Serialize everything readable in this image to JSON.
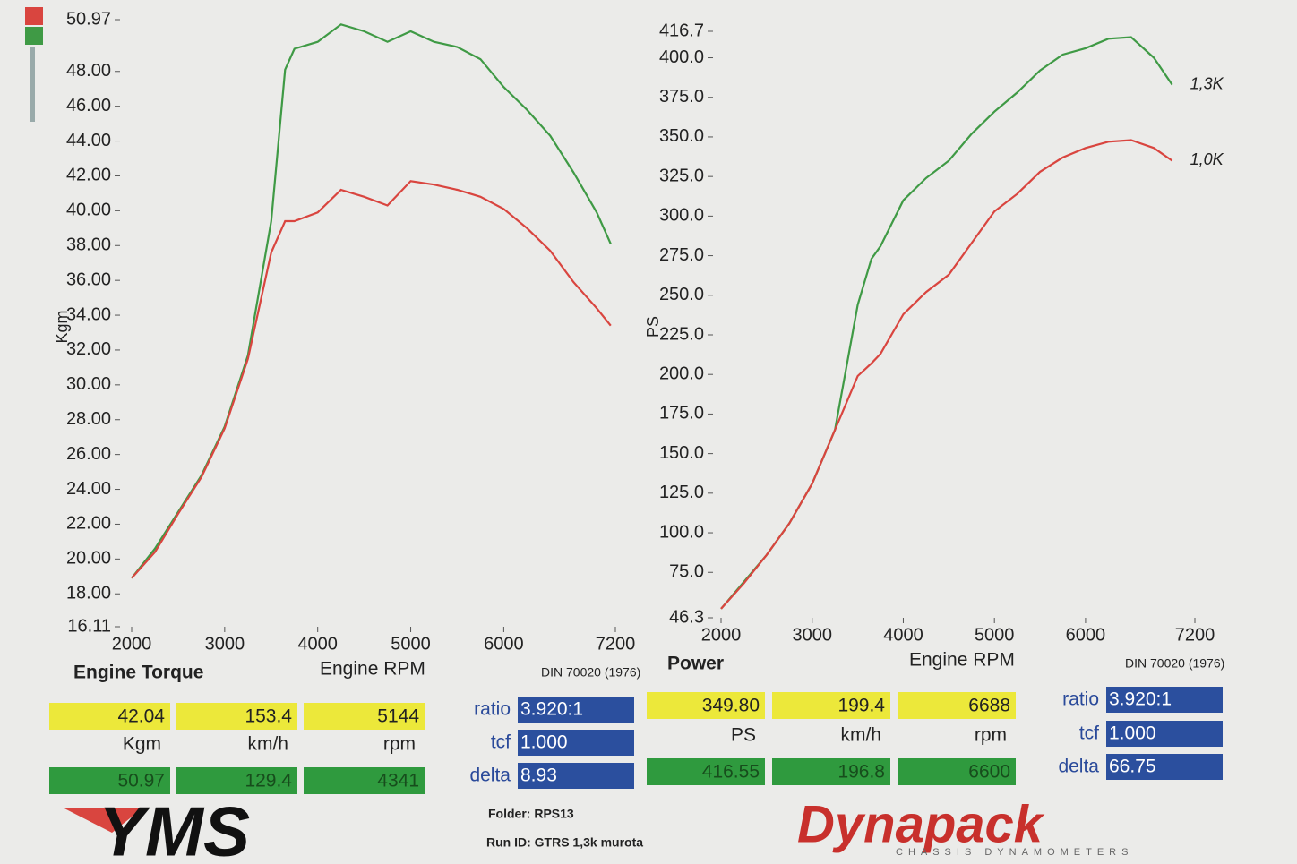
{
  "chart_data": [
    {
      "type": "line",
      "title": "Engine Torque",
      "xlabel": "Engine RPM",
      "ylabel": "Kgm",
      "note": "DIN 70020 (1976)",
      "x": [
        2000,
        2250,
        2500,
        2750,
        3000,
        3250,
        3500,
        3650,
        3750,
        4000,
        4250,
        4500,
        4750,
        5000,
        5250,
        5500,
        5750,
        6000,
        6250,
        6500,
        6750,
        7000,
        7150
      ],
      "series": [
        {
          "color": "#3f9a45",
          "values": [
            18.9,
            20.6,
            22.7,
            24.8,
            27.6,
            31.7,
            39.4,
            48.1,
            49.3,
            49.7,
            50.7,
            50.3,
            49.7,
            50.3,
            49.7,
            49.4,
            48.7,
            47.1,
            45.8,
            44.3,
            42.2,
            39.9,
            38.1
          ]
        },
        {
          "color": "#d9453f",
          "values": [
            18.9,
            20.4,
            22.6,
            24.7,
            27.5,
            31.5,
            37.6,
            39.4,
            39.4,
            39.9,
            41.2,
            40.8,
            40.3,
            41.7,
            41.5,
            41.2,
            40.8,
            40.1,
            39.0,
            37.7,
            35.9,
            34.4,
            33.4
          ]
        }
      ],
      "xlim": [
        2000,
        7200
      ],
      "xticks": [
        2000,
        3000,
        4000,
        5000,
        6000,
        7200
      ],
      "ylim": [
        16.11,
        50.97
      ],
      "yticks": [
        16.11,
        {
          "value": 18,
          "label": "18.00"
        },
        {
          "value": 20,
          "label": "20.00"
        },
        {
          "value": 22,
          "label": "22.00"
        },
        {
          "value": 24,
          "label": "24.00"
        },
        {
          "value": 26,
          "label": "26.00"
        },
        {
          "value": 28,
          "label": "28.00"
        },
        {
          "value": 30,
          "label": "30.00"
        },
        {
          "value": 32,
          "label": "32.00"
        },
        {
          "value": 34,
          "label": "34.00"
        },
        {
          "value": 36,
          "label": "36.00"
        },
        {
          "value": 38,
          "label": "38.00"
        },
        {
          "value": 40,
          "label": "40.00"
        },
        {
          "value": 42,
          "label": "42.00"
        },
        {
          "value": 44,
          "label": "44.00"
        },
        {
          "value": 46,
          "label": "46.00"
        },
        {
          "value": 48,
          "label": "48.00"
        },
        50.97
      ]
    },
    {
      "type": "line",
      "title": "Power",
      "xlabel": "Engine RPM",
      "ylabel": "PS",
      "note": "DIN 70020 (1976)",
      "x": [
        2000,
        2250,
        2500,
        2750,
        3000,
        3250,
        3500,
        3650,
        3750,
        4000,
        4250,
        4500,
        4750,
        5000,
        5250,
        5500,
        5750,
        6000,
        6250,
        6500,
        6750,
        6950
      ],
      "series": [
        {
          "name": "1,3K",
          "color": "#3f9a45",
          "values": [
            52,
            69,
            86,
            106,
            131,
            165,
            244,
            273,
            281,
            310,
            324,
            335,
            352,
            366,
            378,
            392,
            402,
            406,
            412,
            413,
            400,
            383
          ]
        },
        {
          "name": "1,0K",
          "color": "#d9453f",
          "values": [
            52,
            68,
            86,
            106,
            131,
            165,
            199,
            207,
            213,
            238,
            252,
            263,
            283,
            303,
            314,
            328,
            337,
            343,
            347,
            348,
            343,
            335
          ]
        }
      ],
      "xlim": [
        2000,
        7200
      ],
      "xticks": [
        2000,
        3000,
        4000,
        5000,
        6000,
        7200
      ],
      "ylim": [
        46.3,
        416.7
      ],
      "yticks": [
        46.3,
        {
          "value": 75,
          "label": "75.0"
        },
        {
          "value": 100,
          "label": "100.0"
        },
        {
          "value": 125,
          "label": "125.0"
        },
        {
          "value": 150,
          "label": "150.0"
        },
        {
          "value": 175,
          "label": "175.0"
        },
        {
          "value": 200,
          "label": "200.0"
        },
        {
          "value": 225,
          "label": "225.0"
        },
        {
          "value": 250,
          "label": "250.0"
        },
        {
          "value": 275,
          "label": "275.0"
        },
        {
          "value": 300,
          "label": "300.0"
        },
        {
          "value": 325,
          "label": "325.0"
        },
        {
          "value": 350,
          "label": "350.0"
        },
        {
          "value": 375,
          "label": "375.0"
        },
        {
          "value": 400,
          "label": "400.0"
        },
        416.7
      ]
    }
  ],
  "panels": [
    {
      "top": [
        "42.04",
        "153.4",
        "5144"
      ],
      "units": [
        "Kgm",
        "km/h",
        "rpm"
      ],
      "bottom": [
        "50.97",
        "129.4",
        "4341"
      ],
      "params": [
        {
          "label": "ratio",
          "value": "3.920:1"
        },
        {
          "label": "tcf",
          "value": "1.000"
        },
        {
          "label": "delta",
          "value": "8.93"
        }
      ]
    },
    {
      "top": [
        "349.80",
        "199.4",
        "6688"
      ],
      "units": [
        "PS",
        "km/h",
        "rpm"
      ],
      "bottom": [
        "416.55",
        "196.8",
        "6600"
      ],
      "params": [
        {
          "label": "ratio",
          "value": "3.920:1"
        },
        {
          "label": "tcf",
          "value": "1.000"
        },
        {
          "label": "delta",
          "value": "66.75"
        }
      ]
    }
  ],
  "footer": {
    "folder": "Folder: RPS13",
    "run_id": "Run ID: GTRS 1,3k murota",
    "logo_left": "YMS",
    "logo_right": "Dynapack",
    "logo_right_sub": "CHASSIS DYNAMOMETERS"
  }
}
